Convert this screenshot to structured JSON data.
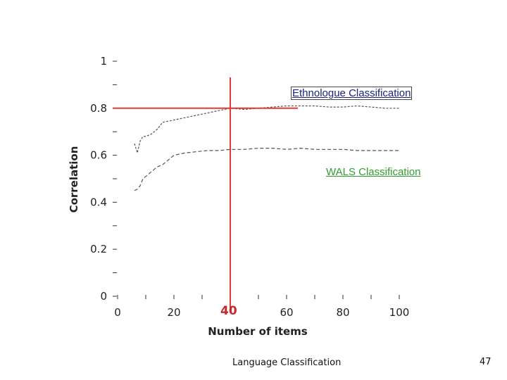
{
  "chart_data": {
    "type": "line",
    "title": "",
    "xlabel": "Number of items",
    "ylabel": "Correlation",
    "xlim": [
      0,
      100
    ],
    "ylim": [
      0,
      1
    ],
    "x_ticks": [
      0,
      20,
      40,
      60,
      80,
      100
    ],
    "y_ticks": [
      0,
      0.2,
      0.4,
      0.6,
      0.8,
      1
    ],
    "y_tick_labels": [
      "0",
      "0.2",
      "0.4",
      "0.6",
      "0.8",
      "1"
    ],
    "grid": false,
    "series": [
      {
        "name": "Ethnologue Classification",
        "x": [
          6,
          7,
          8,
          9,
          10,
          12,
          14,
          16,
          18,
          20,
          24,
          28,
          32,
          36,
          40,
          45,
          50,
          55,
          60,
          65,
          70,
          75,
          80,
          85,
          90,
          95,
          100
        ],
        "y": [
          0.65,
          0.61,
          0.66,
          0.68,
          0.68,
          0.69,
          0.71,
          0.74,
          0.745,
          0.75,
          0.76,
          0.77,
          0.78,
          0.79,
          0.8,
          0.795,
          0.8,
          0.805,
          0.81,
          0.81,
          0.81,
          0.805,
          0.805,
          0.81,
          0.805,
          0.8,
          0.8
        ]
      },
      {
        "name": "WALS Classification",
        "x": [
          6,
          7,
          8,
          9,
          10,
          12,
          14,
          16,
          18,
          20,
          24,
          28,
          32,
          36,
          40,
          45,
          50,
          55,
          60,
          65,
          70,
          75,
          80,
          85,
          90,
          95,
          100
        ],
        "y": [
          0.45,
          0.455,
          0.47,
          0.5,
          0.51,
          0.53,
          0.55,
          0.56,
          0.58,
          0.6,
          0.61,
          0.615,
          0.62,
          0.62,
          0.625,
          0.625,
          0.63,
          0.63,
          0.625,
          0.63,
          0.625,
          0.625,
          0.625,
          0.62,
          0.62,
          0.62,
          0.62
        ]
      }
    ],
    "reference_lines": {
      "vertical_x": 40,
      "horizontal_y": 0.8,
      "vertical_label": "40"
    }
  },
  "callouts": {
    "ethnologue": "Ethnologue Classification",
    "wals": "WALS Classification"
  },
  "footer": {
    "text": "Language Classification",
    "page_number": "47"
  },
  "colors": {
    "reference": "#e53935",
    "ethnologue_label": "#1a237e",
    "wals_label": "#2e9e2e",
    "series": "#555555"
  }
}
